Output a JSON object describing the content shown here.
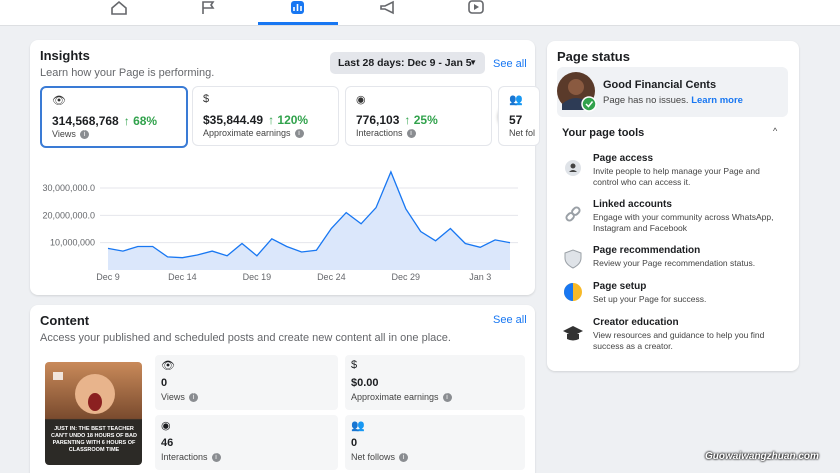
{
  "insights": {
    "title": "Insights",
    "subtitle": "Learn how your Page is performing.",
    "date_range": "Last 28 days: Dec 9 - Jan 5",
    "see_all": "See all",
    "metrics": [
      {
        "value": "314,568,768",
        "change": "↑ 68%",
        "label": "Views"
      },
      {
        "value": "$35,844.49",
        "change": "↑ 120%",
        "label": "Approximate earnings"
      },
      {
        "value": "776,103",
        "change": "↑ 25%",
        "label": "Interactions"
      },
      {
        "value": "57",
        "label": "Net fol"
      }
    ],
    "chart": {
      "type": "line",
      "color": "#1877f2",
      "fill": "#dbe7fb",
      "categories": [
        "Dec 9",
        null,
        null,
        null,
        null,
        "Dec 14",
        null,
        null,
        null,
        null,
        "Dec 19",
        null,
        null,
        null,
        null,
        "Dec 24",
        null,
        null,
        null,
        null,
        "Dec 29",
        null,
        null,
        null,
        null,
        "Jan 3",
        null,
        null
      ],
      "values": [
        7900000,
        6900000,
        8600000,
        8600000,
        4800000,
        4500000,
        5500000,
        6900000,
        5200000,
        9700000,
        5200000,
        11400000,
        8600000,
        6600000,
        7200000,
        15200000,
        21000000,
        16900000,
        22800000,
        35900000,
        22400000,
        14100000,
        10700000,
        15200000,
        9700000,
        8300000,
        11000000,
        10000000
      ],
      "ylim": [
        0,
        40000000
      ],
      "yticks": [
        {
          "value": 10000000,
          "label": "10,000,000"
        },
        {
          "value": 20000000,
          "label": "20,000,000.0"
        },
        {
          "value": 30000000,
          "label": "30,000,000.0"
        }
      ],
      "grid": true
    }
  },
  "content": {
    "title": "Content",
    "subtitle": "Access your published and scheduled posts and create new content all in one place.",
    "see_all": "See all",
    "thumbnail_text": "JUST IN: THE BEST TEACHER CAN'T UNDO 18 HOURS OF BAD PARENTING WITH 6 HOURS OF CLASSROOM TIME",
    "stats": [
      {
        "value": "0",
        "label": "Views"
      },
      {
        "value": "$0.00",
        "label": "Approximate earnings"
      },
      {
        "value": "46",
        "label": "Interactions"
      },
      {
        "value": "0",
        "label": "Net follows"
      }
    ]
  },
  "page_status": {
    "title": "Page status",
    "name": "Good Financial Cents",
    "status": "Page has no issues.",
    "link": "Learn more",
    "tools_title": "Your page tools",
    "tools": [
      {
        "title": "Page access",
        "description": "Invite people to help manage your Page and control who can access it."
      },
      {
        "title": "Linked accounts",
        "description": "Engage with your community across WhatsApp, Instagram and Facebook"
      },
      {
        "title": "Page recommendation",
        "description": "Review your Page recommendation status."
      },
      {
        "title": "Page setup",
        "description": "Set up your Page for success."
      },
      {
        "title": "Creator education",
        "description": "View resources and guidance to help you find success as a creator."
      }
    ]
  },
  "watermark": "Guowaiwangzhuan.com"
}
